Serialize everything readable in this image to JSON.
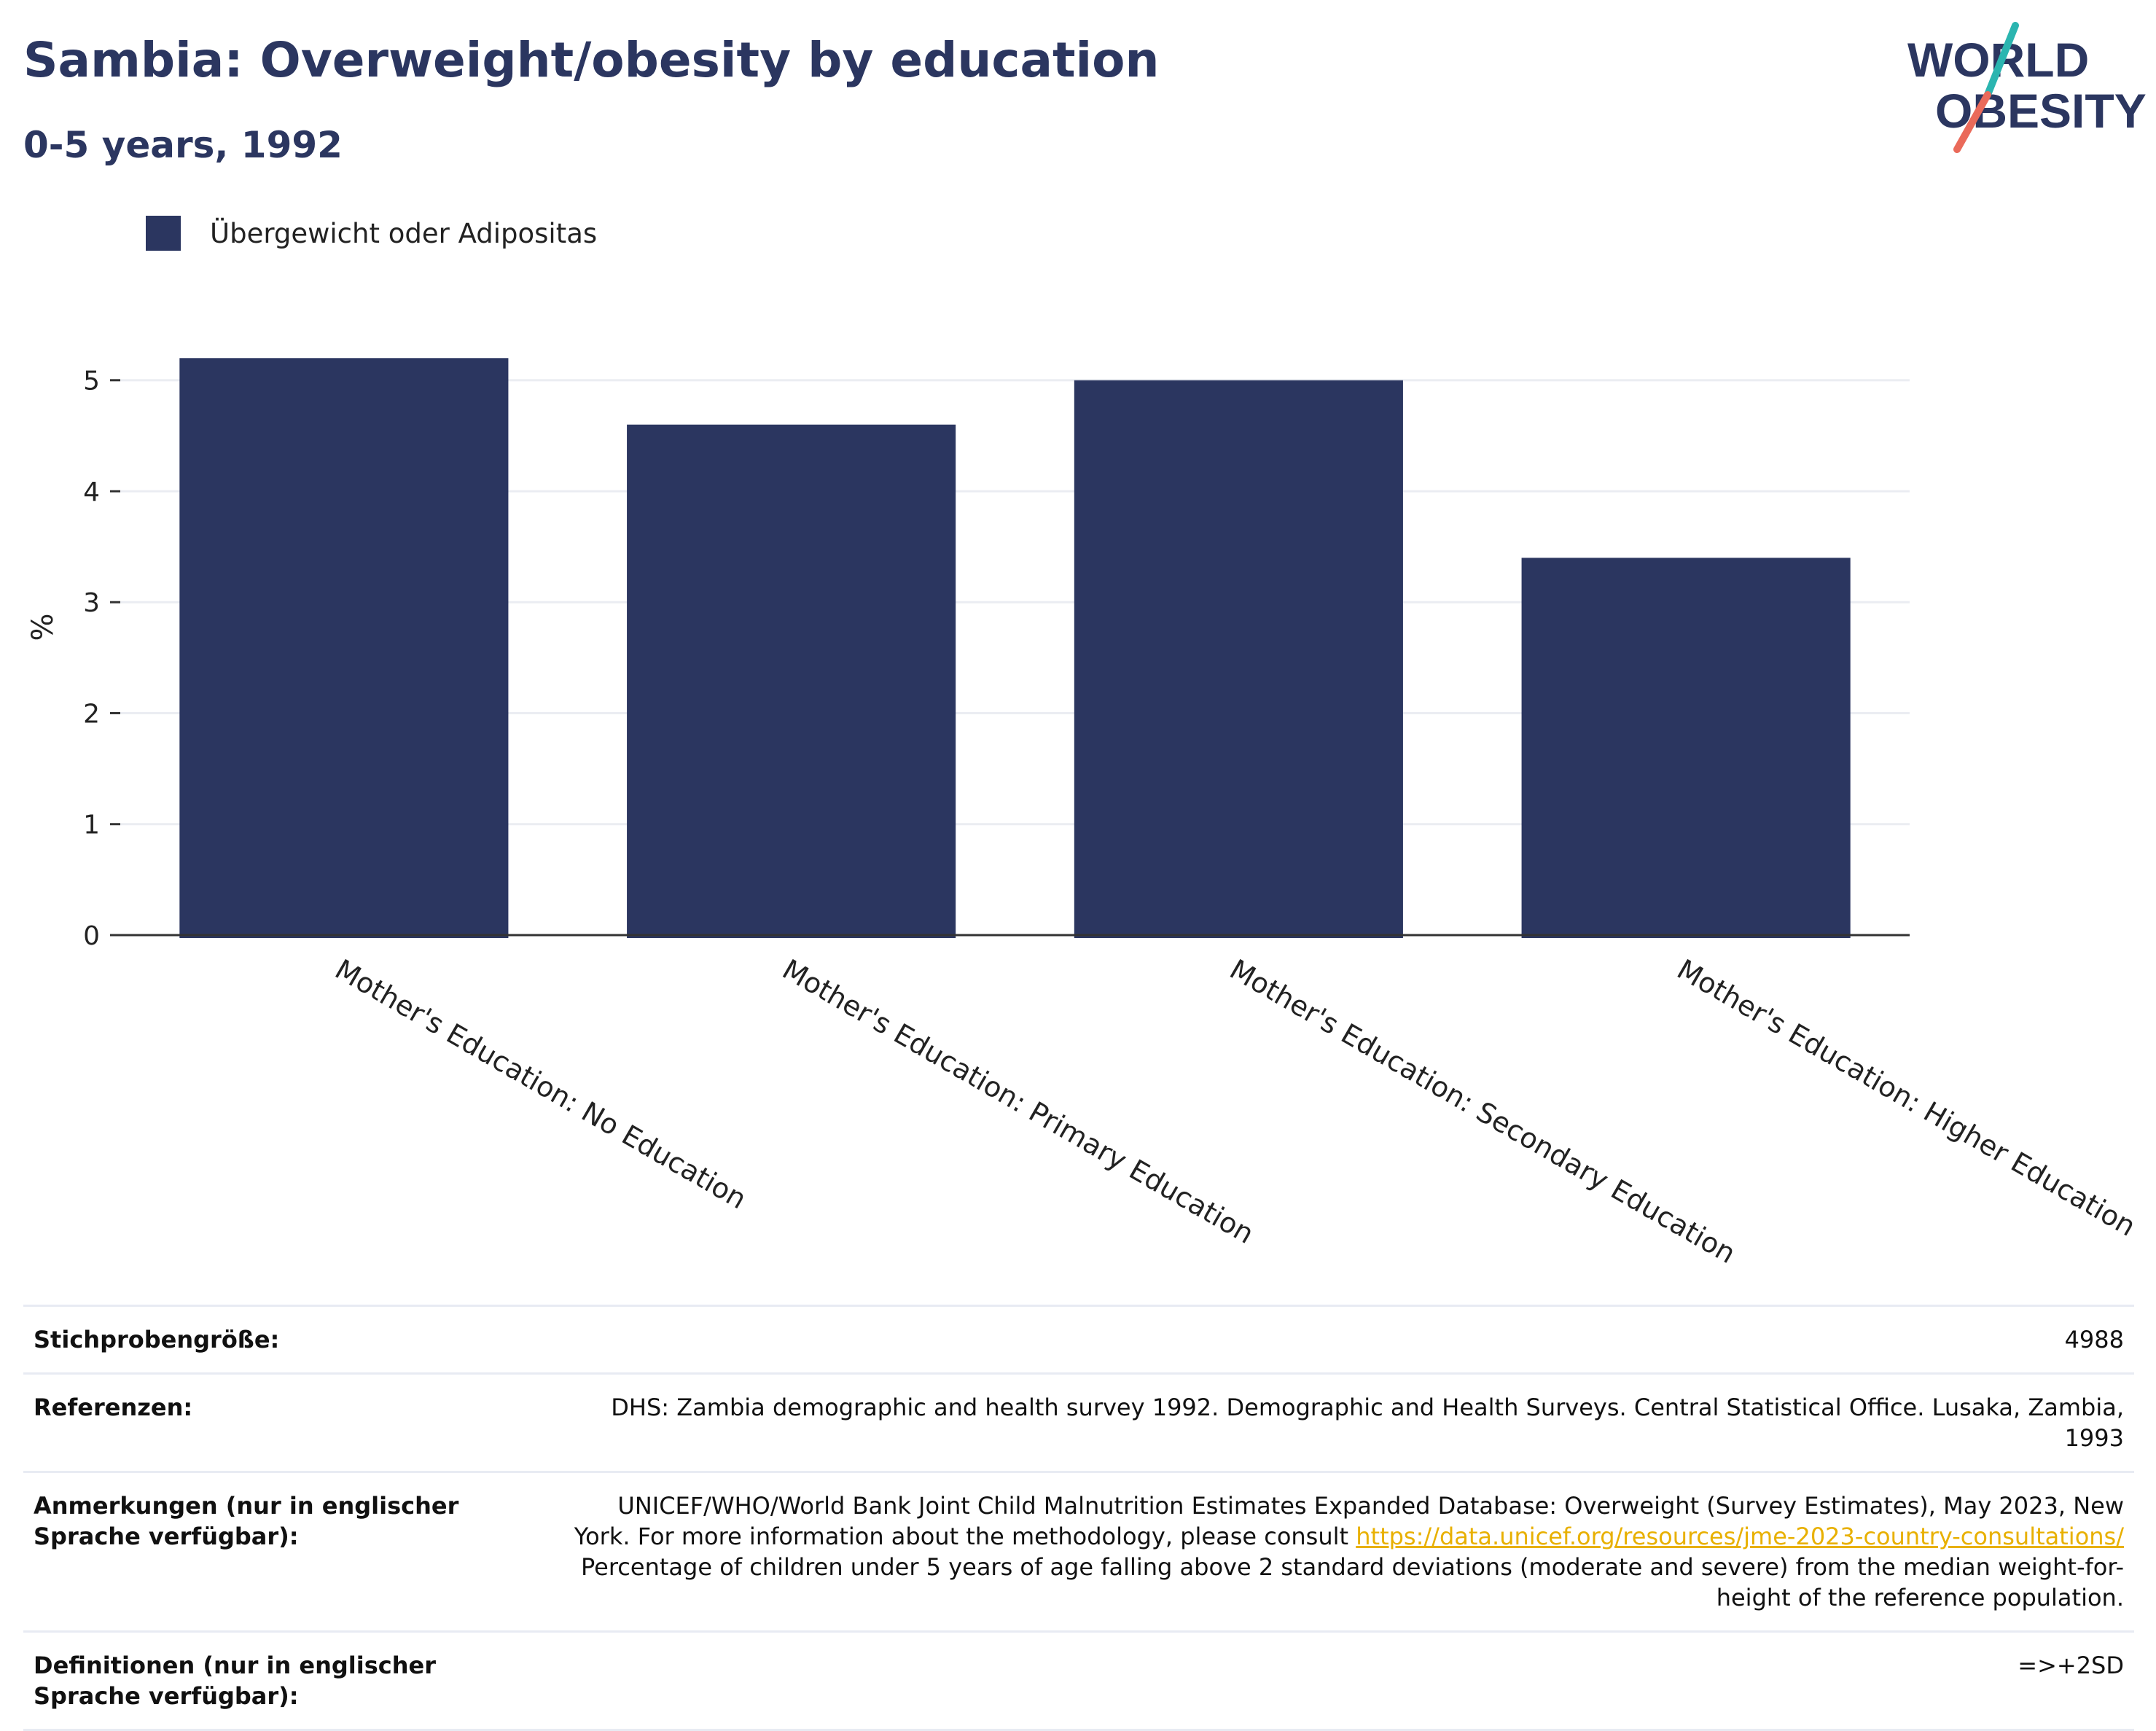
{
  "header": {
    "title": "Sambia: Overweight/obesity by education",
    "subtitle": "0-5 years, 1992"
  },
  "logo": {
    "line1": "WORLD",
    "line2": "OBESITY",
    "colors": {
      "text": "#2b3660",
      "slash_teal": "#2bb5b0",
      "slash_coral": "#ea6a5a"
    }
  },
  "legend": {
    "label": "Übergewicht oder Adipositas",
    "color": "#2b3660"
  },
  "chart_data": {
    "type": "bar",
    "categories": [
      "Mother's Education: No Education",
      "Mother's Education: Primary Education",
      "Mother's Education: Secondary Education",
      "Mother's Education: Higher Education"
    ],
    "series": [
      {
        "name": "Übergewicht oder Adipositas",
        "values": [
          5.2,
          4.6,
          5.0,
          3.4
        ],
        "color": "#2b3660"
      }
    ],
    "ylabel": "%",
    "xlabel": "",
    "ylim": [
      0,
      5.55
    ],
    "yticks": [
      0,
      1,
      2,
      3,
      4,
      5
    ],
    "grid": true,
    "legend_position": "top-left"
  },
  "meta": {
    "rows": [
      {
        "key": "Stichprobengröße:",
        "value": "4988"
      },
      {
        "key": "Referenzen:",
        "value": "DHS: Zambia demographic and health survey 1992. Demographic and Health Surveys. Central Statistical Office. Lusaka, Zambia, 1993"
      },
      {
        "key": "Anmerkungen (nur in englischer Sprache verfügbar):",
        "value_before": "UNICEF/WHO/World Bank Joint Child Malnutrition Estimates Expanded Database: Overweight (Survey Estimates), May 2023, New York. For more information about the methodology, please consult ",
        "link": "https://data.unicef.org/resources/jme-2023-country-consultations/",
        "value_after": " Percentage of children under 5 years of age falling above 2 standard deviations (moderate and severe) from the median weight-for-height of the reference population."
      },
      {
        "key": "Definitionen (nur in englischer Sprache verfügbar):",
        "value": "=>+2SD"
      }
    ]
  }
}
